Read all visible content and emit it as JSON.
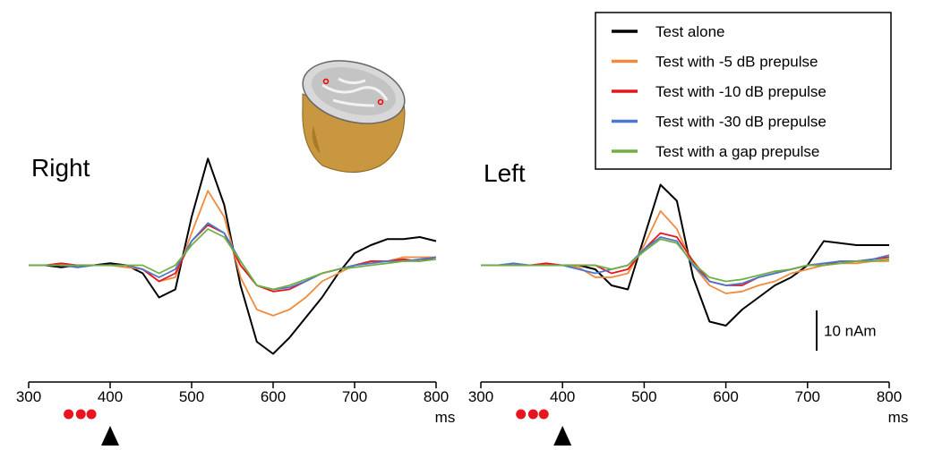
{
  "chart_data": [
    {
      "type": "line",
      "title": "Right",
      "xlabel": "ms",
      "x": [
        300,
        320,
        340,
        360,
        380,
        400,
        420,
        440,
        460,
        480,
        500,
        520,
        540,
        560,
        580,
        600,
        620,
        640,
        660,
        680,
        700,
        720,
        740,
        760,
        780,
        800
      ],
      "xlim": [
        300,
        800
      ],
      "xticks": [
        300,
        400,
        500,
        600,
        700,
        800
      ],
      "ylim": [
        -29,
        33
      ],
      "prepulse_ms": [
        349,
        364,
        377
      ],
      "test_ms": 400,
      "series": [
        {
          "name": "Test alone",
          "color": "#000000",
          "values": [
            0,
            0,
            -0.5,
            0,
            0,
            0.5,
            0,
            -2,
            -8,
            -6,
            12,
            26.5,
            15,
            -5,
            -19,
            -22,
            -18,
            -13,
            -8,
            -2,
            3,
            5,
            6.5,
            6.5,
            7,
            6
          ]
        },
        {
          "name": "Test with -5 dB prepulse",
          "color": "#f08a3c",
          "values": [
            0,
            0,
            0,
            -0.5,
            0,
            0,
            -0.5,
            -1,
            -4,
            -3,
            8,
            18.5,
            12,
            -3,
            -11,
            -12.5,
            -11,
            -8,
            -4,
            -2,
            0,
            1,
            1,
            2,
            2,
            2
          ]
        },
        {
          "name": "Test with -10 dB prepulse",
          "color": "#e8141e",
          "values": [
            0,
            0,
            0.5,
            0,
            0,
            0,
            0,
            -1,
            -4,
            -2,
            6,
            10,
            8,
            0,
            -5,
            -6.5,
            -6,
            -4,
            -2,
            -1,
            0,
            1,
            1,
            1.5,
            1,
            2
          ]
        },
        {
          "name": "Test with -30 dB prepulse",
          "color": "#4a78d0",
          "values": [
            0,
            0,
            0,
            -0.5,
            0,
            0,
            0,
            -1,
            -3,
            -1,
            6,
            10.5,
            8,
            1,
            -5,
            -6,
            -5.5,
            -4,
            -2,
            -1,
            0,
            0.5,
            1,
            1,
            1.5,
            2
          ]
        },
        {
          "name": "Test with a gap prepulse",
          "color": "#70b040",
          "values": [
            0,
            0,
            0,
            0,
            0,
            0,
            0,
            0,
            -2,
            0,
            5,
            9,
            7,
            1,
            -5,
            -6,
            -5,
            -3.5,
            -2,
            -1,
            -0.5,
            0,
            0.5,
            1,
            1,
            1.5
          ]
        }
      ]
    },
    {
      "type": "line",
      "title": "Left",
      "xlabel": "ms",
      "x": [
        300,
        320,
        340,
        360,
        380,
        400,
        420,
        440,
        460,
        480,
        500,
        520,
        540,
        560,
        580,
        600,
        620,
        640,
        660,
        680,
        700,
        720,
        740,
        760,
        780,
        800
      ],
      "xlim": [
        300,
        800
      ],
      "xticks": [
        300,
        400,
        500,
        600,
        700,
        800
      ],
      "ylim": [
        -29,
        33
      ],
      "prepulse_ms": [
        349,
        364,
        377
      ],
      "test_ms": 400,
      "scale_bar": {
        "value": 10,
        "label": "10 nAm"
      },
      "series": [
        {
          "color": "#000000",
          "values": [
            0,
            0,
            0,
            0,
            0,
            0,
            0,
            -1,
            -5,
            -6,
            7,
            20,
            16,
            -3,
            -14,
            -15,
            -11,
            -8,
            -5,
            -3,
            0,
            6,
            5.5,
            5,
            5,
            5
          ]
        },
        {
          "color": "#f08a3c",
          "values": [
            0,
            0,
            0,
            0,
            0,
            0,
            -0.5,
            -3,
            -3,
            -2,
            5,
            13.5,
            9,
            0,
            -5,
            -7,
            -6.5,
            -5,
            -4,
            -2,
            -1,
            0,
            0.5,
            0.5,
            1,
            1
          ]
        },
        {
          "color": "#e8141e",
          "values": [
            0,
            0,
            0,
            0,
            0.5,
            0,
            0,
            0,
            -2,
            -1,
            4,
            8,
            7,
            1,
            -4,
            -5,
            -5,
            -3,
            -2,
            -1,
            0,
            0,
            1,
            1,
            1.5,
            2
          ]
        },
        {
          "color": "#4a78d0",
          "values": [
            0,
            0,
            0.5,
            0,
            0,
            0,
            -1,
            -2,
            -1,
            0,
            4,
            7,
            6,
            0,
            -4,
            -5,
            -4.5,
            -3,
            -2,
            -1,
            0,
            0.5,
            1,
            1,
            1.5,
            2.5
          ]
        },
        {
          "color": "#70b040",
          "values": [
            0,
            0,
            0,
            0,
            0,
            0,
            0,
            0,
            -1,
            0,
            3.5,
            6.5,
            5.5,
            0.5,
            -3,
            -4,
            -3.5,
            -2.5,
            -1.5,
            -1,
            0,
            0,
            0.5,
            1,
            1,
            1.5
          ]
        }
      ]
    }
  ]
}
